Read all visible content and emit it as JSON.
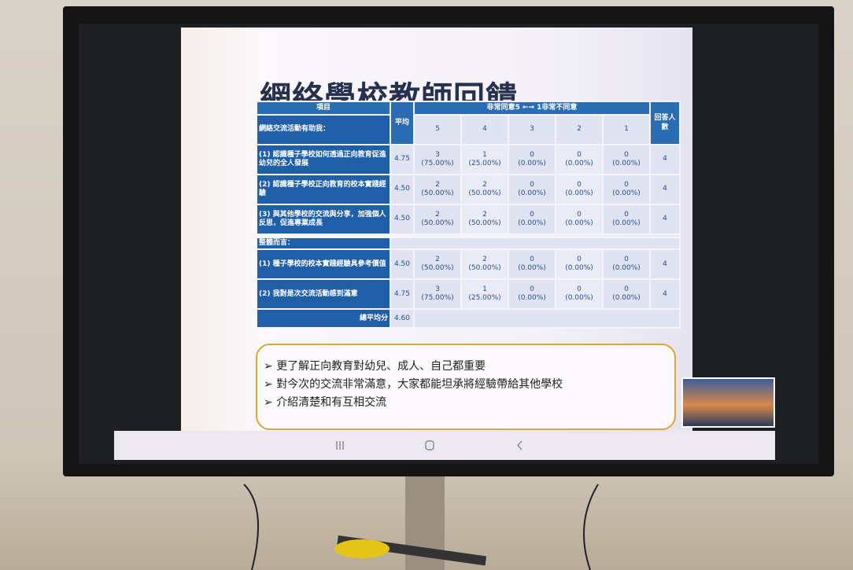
{
  "slide": {
    "title": "網絡學校教師回饋"
  },
  "table": {
    "header": {
      "item": "項目",
      "average": "平均",
      "scale": "非常同意5 ←→ 1非常不同意",
      "levels": [
        5,
        4,
        3,
        2,
        1
      ],
      "respondents": "回答人數"
    },
    "sections": [
      {
        "label": "網絡交流活動有助我：",
        "rows": [
          {
            "item": "(1) 認識種子學校如何透過正向教育促進幼兒的全人發展",
            "average": "4.75",
            "responses": [
              {
                "count": 3,
                "percent": "(75.00%)"
              },
              {
                "count": 1,
                "percent": "(25.00%)"
              },
              {
                "count": 0,
                "percent": "(0.00%)"
              },
              {
                "count": 0,
                "percent": "(0.00%)"
              },
              {
                "count": 0,
                "percent": "(0.00%)"
              }
            ],
            "respondents": 4
          },
          {
            "item": "(2) 認識種子學校正向教育的校本實踐經驗",
            "average": "4.50",
            "responses": [
              {
                "count": 2,
                "percent": "(50.00%)"
              },
              {
                "count": 2,
                "percent": "(50.00%)"
              },
              {
                "count": 0,
                "percent": "(0.00%)"
              },
              {
                "count": 0,
                "percent": "(0.00%)"
              },
              {
                "count": 0,
                "percent": "(0.00%)"
              }
            ],
            "respondents": 4
          },
          {
            "item": "(3) 與其他學校的交流與分享，加強個人反思，促進專業成長",
            "average": "4.50",
            "responses": [
              {
                "count": 2,
                "percent": "(50.00%)"
              },
              {
                "count": 2,
                "percent": "(50.00%)"
              },
              {
                "count": 0,
                "percent": "(0.00%)"
              },
              {
                "count": 0,
                "percent": "(0.00%)"
              },
              {
                "count": 0,
                "percent": "(0.00%)"
              }
            ],
            "respondents": 4
          }
        ]
      },
      {
        "label": "整體而言：",
        "rows": [
          {
            "item": "(1) 種子學校的校本實踐經驗具參考價值",
            "average": "4.50",
            "responses": [
              {
                "count": 2,
                "percent": "(50.00%)"
              },
              {
                "count": 2,
                "percent": "(50.00%)"
              },
              {
                "count": 0,
                "percent": "(0.00%)"
              },
              {
                "count": 0,
                "percent": "(0.00%)"
              },
              {
                "count": 0,
                "percent": "(0.00%)"
              }
            ],
            "respondents": 4
          },
          {
            "item": "(2) 我對是次交流活動感到滿意",
            "average": "4.75",
            "responses": [
              {
                "count": 3,
                "percent": "(75.00%)"
              },
              {
                "count": 1,
                "percent": "(25.00%)"
              },
              {
                "count": 0,
                "percent": "(0.00%)"
              },
              {
                "count": 0,
                "percent": "(0.00%)"
              },
              {
                "count": 0,
                "percent": "(0.00%)"
              }
            ],
            "respondents": 4
          }
        ]
      }
    ],
    "overall": {
      "label": "總平均分",
      "value": "4.60"
    }
  },
  "notes": [
    "更了解正向教育對幼兒、成人、自己都重要",
    "對今次的交流非常滿意，大家都能坦承將經驗帶給其他學校",
    "介紹清楚和有互相交流"
  ]
}
